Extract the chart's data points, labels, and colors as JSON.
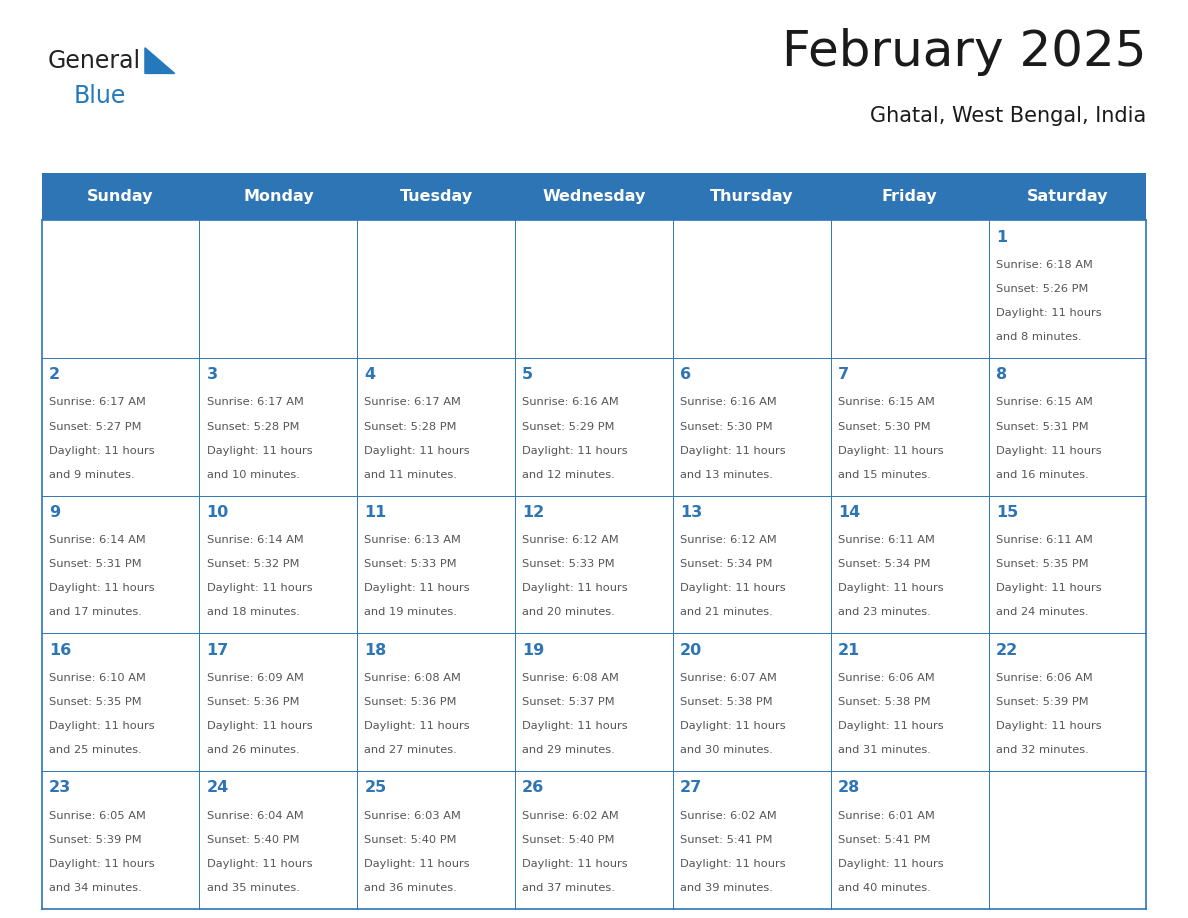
{
  "title": "February 2025",
  "subtitle": "Ghatal, West Bengal, India",
  "header_bg": "#2E75B6",
  "header_text_color": "#FFFFFF",
  "days_of_week": [
    "Sunday",
    "Monday",
    "Tuesday",
    "Wednesday",
    "Thursday",
    "Friday",
    "Saturday"
  ],
  "cell_bg": "#FFFFFF",
  "cell_border": "#2E75B6",
  "day_number_color": "#2E75B6",
  "info_text_color": "#555555",
  "logo_general_color": "#222222",
  "logo_blue_color": "#2479BD",
  "calendar_data": [
    [
      {
        "day": null,
        "sunrise": null,
        "sunset": null,
        "daylight": null
      },
      {
        "day": null,
        "sunrise": null,
        "sunset": null,
        "daylight": null
      },
      {
        "day": null,
        "sunrise": null,
        "sunset": null,
        "daylight": null
      },
      {
        "day": null,
        "sunrise": null,
        "sunset": null,
        "daylight": null
      },
      {
        "day": null,
        "sunrise": null,
        "sunset": null,
        "daylight": null
      },
      {
        "day": null,
        "sunrise": null,
        "sunset": null,
        "daylight": null
      },
      {
        "day": 1,
        "sunrise": "6:18 AM",
        "sunset": "5:26 PM",
        "daylight": "11 hours and 8 minutes."
      }
    ],
    [
      {
        "day": 2,
        "sunrise": "6:17 AM",
        "sunset": "5:27 PM",
        "daylight": "11 hours and 9 minutes."
      },
      {
        "day": 3,
        "sunrise": "6:17 AM",
        "sunset": "5:28 PM",
        "daylight": "11 hours and 10 minutes."
      },
      {
        "day": 4,
        "sunrise": "6:17 AM",
        "sunset": "5:28 PM",
        "daylight": "11 hours and 11 minutes."
      },
      {
        "day": 5,
        "sunrise": "6:16 AM",
        "sunset": "5:29 PM",
        "daylight": "11 hours and 12 minutes."
      },
      {
        "day": 6,
        "sunrise": "6:16 AM",
        "sunset": "5:30 PM",
        "daylight": "11 hours and 13 minutes."
      },
      {
        "day": 7,
        "sunrise": "6:15 AM",
        "sunset": "5:30 PM",
        "daylight": "11 hours and 15 minutes."
      },
      {
        "day": 8,
        "sunrise": "6:15 AM",
        "sunset": "5:31 PM",
        "daylight": "11 hours and 16 minutes."
      }
    ],
    [
      {
        "day": 9,
        "sunrise": "6:14 AM",
        "sunset": "5:31 PM",
        "daylight": "11 hours and 17 minutes."
      },
      {
        "day": 10,
        "sunrise": "6:14 AM",
        "sunset": "5:32 PM",
        "daylight": "11 hours and 18 minutes."
      },
      {
        "day": 11,
        "sunrise": "6:13 AM",
        "sunset": "5:33 PM",
        "daylight": "11 hours and 19 minutes."
      },
      {
        "day": 12,
        "sunrise": "6:12 AM",
        "sunset": "5:33 PM",
        "daylight": "11 hours and 20 minutes."
      },
      {
        "day": 13,
        "sunrise": "6:12 AM",
        "sunset": "5:34 PM",
        "daylight": "11 hours and 21 minutes."
      },
      {
        "day": 14,
        "sunrise": "6:11 AM",
        "sunset": "5:34 PM",
        "daylight": "11 hours and 23 minutes."
      },
      {
        "day": 15,
        "sunrise": "6:11 AM",
        "sunset": "5:35 PM",
        "daylight": "11 hours and 24 minutes."
      }
    ],
    [
      {
        "day": 16,
        "sunrise": "6:10 AM",
        "sunset": "5:35 PM",
        "daylight": "11 hours and 25 minutes."
      },
      {
        "day": 17,
        "sunrise": "6:09 AM",
        "sunset": "5:36 PM",
        "daylight": "11 hours and 26 minutes."
      },
      {
        "day": 18,
        "sunrise": "6:08 AM",
        "sunset": "5:36 PM",
        "daylight": "11 hours and 27 minutes."
      },
      {
        "day": 19,
        "sunrise": "6:08 AM",
        "sunset": "5:37 PM",
        "daylight": "11 hours and 29 minutes."
      },
      {
        "day": 20,
        "sunrise": "6:07 AM",
        "sunset": "5:38 PM",
        "daylight": "11 hours and 30 minutes."
      },
      {
        "day": 21,
        "sunrise": "6:06 AM",
        "sunset": "5:38 PM",
        "daylight": "11 hours and 31 minutes."
      },
      {
        "day": 22,
        "sunrise": "6:06 AM",
        "sunset": "5:39 PM",
        "daylight": "11 hours and 32 minutes."
      }
    ],
    [
      {
        "day": 23,
        "sunrise": "6:05 AM",
        "sunset": "5:39 PM",
        "daylight": "11 hours and 34 minutes."
      },
      {
        "day": 24,
        "sunrise": "6:04 AM",
        "sunset": "5:40 PM",
        "daylight": "11 hours and 35 minutes."
      },
      {
        "day": 25,
        "sunrise": "6:03 AM",
        "sunset": "5:40 PM",
        "daylight": "11 hours and 36 minutes."
      },
      {
        "day": 26,
        "sunrise": "6:02 AM",
        "sunset": "5:40 PM",
        "daylight": "11 hours and 37 minutes."
      },
      {
        "day": 27,
        "sunrise": "6:02 AM",
        "sunset": "5:41 PM",
        "daylight": "11 hours and 39 minutes."
      },
      {
        "day": 28,
        "sunrise": "6:01 AM",
        "sunset": "5:41 PM",
        "daylight": "11 hours and 40 minutes."
      },
      {
        "day": null,
        "sunrise": null,
        "sunset": null,
        "daylight": null
      }
    ]
  ],
  "fig_width": 11.88,
  "fig_height": 9.18,
  "dpi": 100
}
